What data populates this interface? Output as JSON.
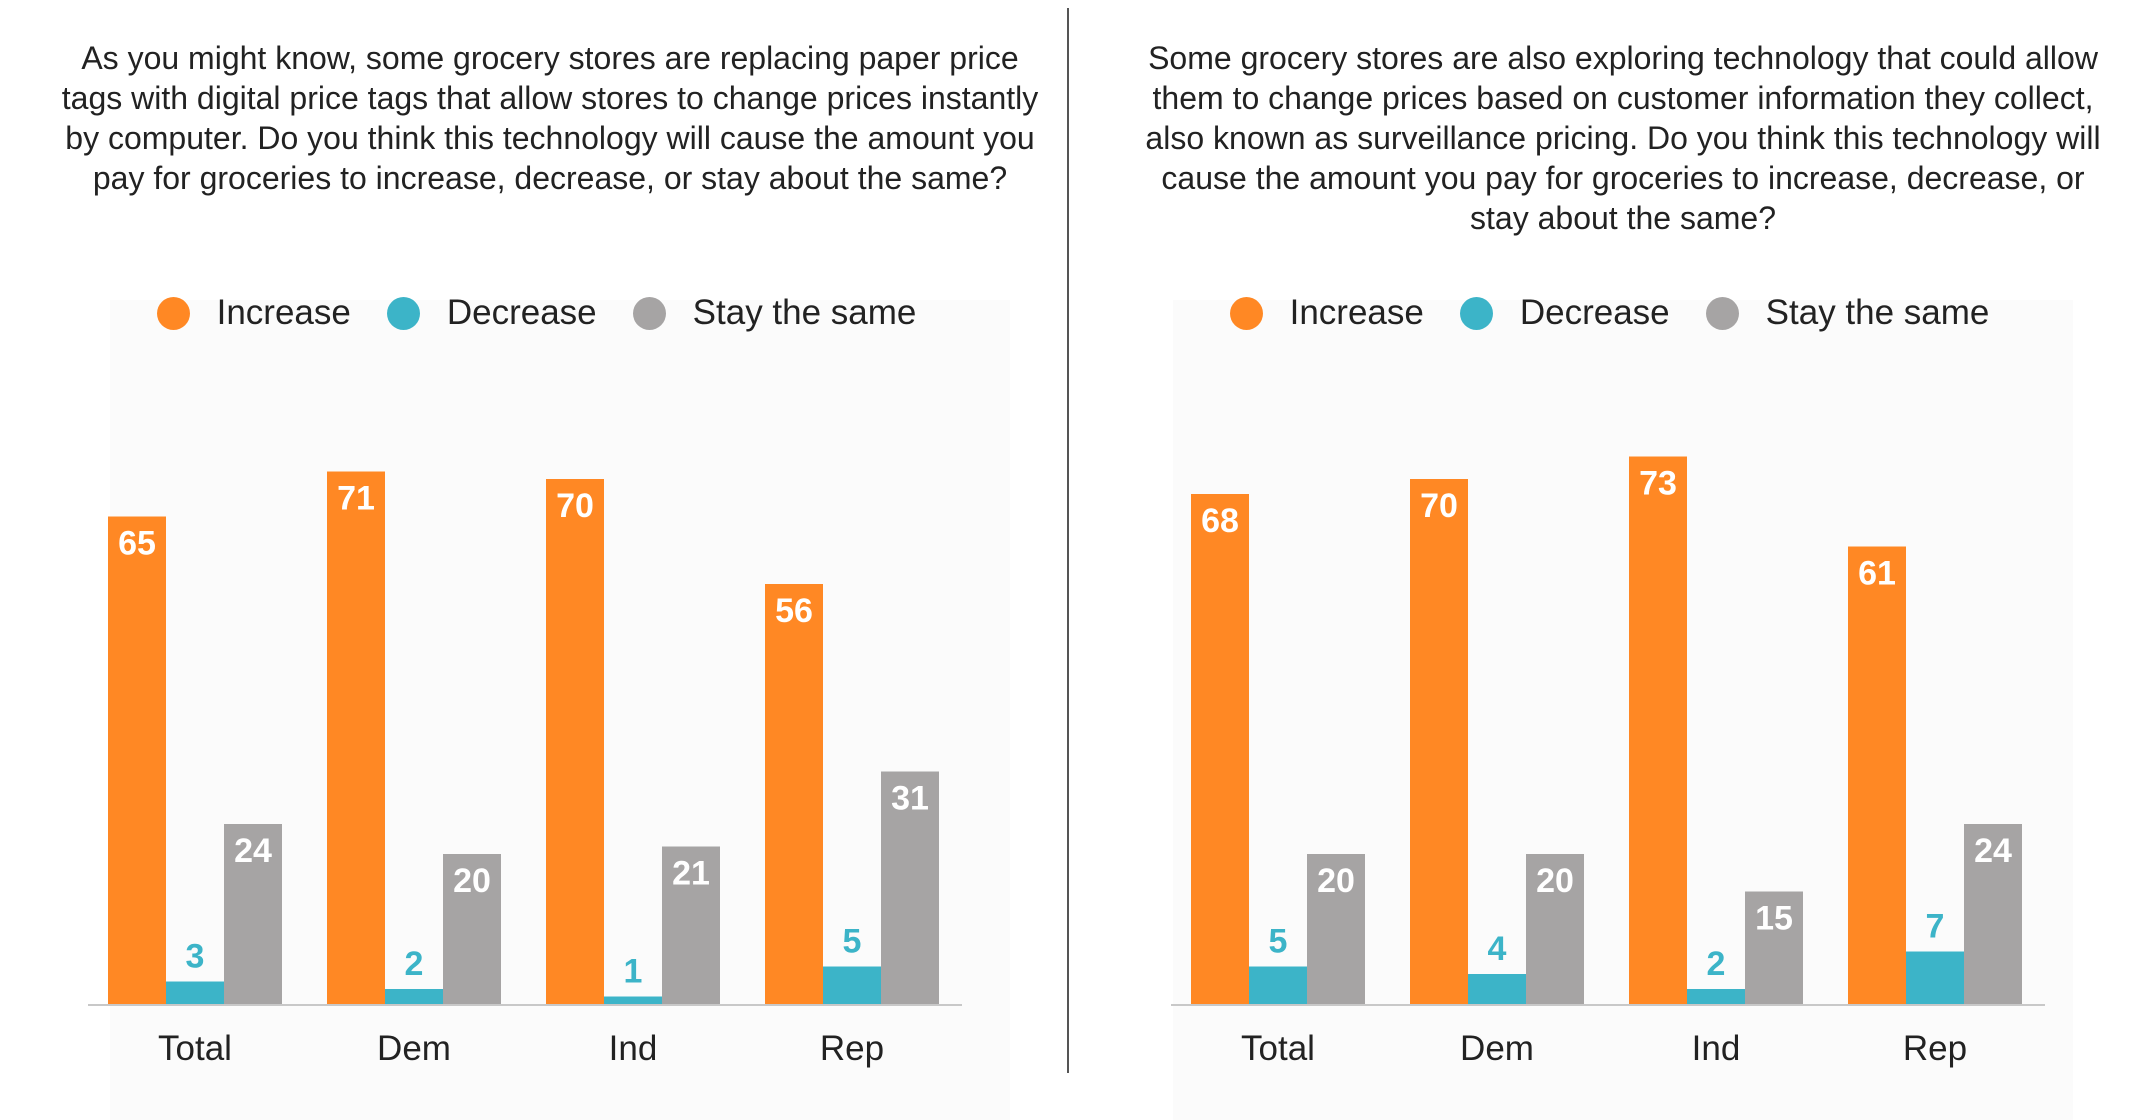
{
  "legend": {
    "increase": "Increase",
    "decrease": "Decrease",
    "stay": "Stay the same"
  },
  "colors": {
    "increase": "#ff8824",
    "decrease": "#3cb4c8",
    "stay": "#a6a4a4"
  },
  "chart_data": [
    {
      "type": "bar",
      "title": "As you might know, some grocery stores are replacing paper price tags with digital price tags that allow stores to change prices instantly by computer. Do you think this technology will cause the amount you pay for groceries to increase, decrease, or stay about the same?",
      "categories": [
        "Total",
        "Dem",
        "Ind",
        "Rep"
      ],
      "series": [
        {
          "name": "Increase",
          "values": [
            65,
            71,
            70,
            56
          ]
        },
        {
          "name": "Decrease",
          "values": [
            3,
            2,
            1,
            5
          ]
        },
        {
          "name": "Stay the same",
          "values": [
            24,
            20,
            21,
            31
          ]
        }
      ],
      "legend_position": "top",
      "grid": false,
      "ylim": [
        0,
        100
      ]
    },
    {
      "type": "bar",
      "title": "Some grocery stores are also exploring technology that could allow them to change prices based on customer information they collect, also known as surveillance pricing. Do you think this technology will cause the amount you pay for groceries to increase, decrease, or stay about the same?",
      "categories": [
        "Total",
        "Dem",
        "Ind",
        "Rep"
      ],
      "series": [
        {
          "name": "Increase",
          "values": [
            68,
            70,
            73,
            61
          ]
        },
        {
          "name": "Decrease",
          "values": [
            5,
            4,
            2,
            7
          ]
        },
        {
          "name": "Stay the same",
          "values": [
            20,
            20,
            15,
            24
          ]
        }
      ],
      "legend_position": "top",
      "grid": false,
      "ylim": [
        0,
        100
      ]
    }
  ]
}
